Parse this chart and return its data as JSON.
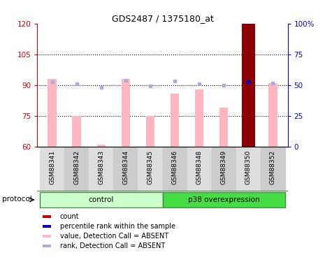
{
  "title": "GDS2487 / 1375180_at",
  "samples": [
    "GSM88341",
    "GSM88342",
    "GSM88343",
    "GSM88344",
    "GSM88345",
    "GSM88346",
    "GSM88348",
    "GSM88349",
    "GSM88350",
    "GSM88352"
  ],
  "ylim_left": [
    60,
    120
  ],
  "ylim_right": [
    0,
    100
  ],
  "yticks_left": [
    60,
    75,
    90,
    105,
    120
  ],
  "yticks_right": [
    0,
    25,
    50,
    75,
    100
  ],
  "ytick_labels_right": [
    "0",
    "25",
    "50",
    "75",
    "100%"
  ],
  "bar_values": [
    93,
    75,
    61,
    93,
    75,
    86,
    88,
    79,
    120,
    91
  ],
  "bar_color_absent": "#ffb6c1",
  "bar_color_count": "#8b0000",
  "rank_values_left": [
    91.5,
    90.5,
    89.0,
    92.5,
    89.5,
    92.0,
    90.5,
    90.0,
    91.5,
    91.0
  ],
  "rank_color_absent": "#aaaadd",
  "special_bar_index": 8,
  "special_rank_color": "#0000cc",
  "grid_yticks": [
    75,
    90,
    105
  ],
  "grid_color": "#000000",
  "grid_linestyle": ":",
  "grid_linewidth": 0.8,
  "left_tick_color": "#cc0000",
  "right_tick_color": "#0000cc",
  "legend_items": [
    {
      "color": "#cc0000",
      "label": "count"
    },
    {
      "color": "#0000cc",
      "label": "percentile rank within the sample"
    },
    {
      "color": "#ffb6c1",
      "label": "value, Detection Call = ABSENT"
    },
    {
      "color": "#aaaadd",
      "label": "rank, Detection Call = ABSENT"
    }
  ],
  "ctrl_color": "#ccffcc",
  "p38_color": "#44dd44",
  "ctrl_samples": 5,
  "p38_samples": 5,
  "col_bg_even": "#dddddd",
  "col_bg_odd": "#cccccc"
}
